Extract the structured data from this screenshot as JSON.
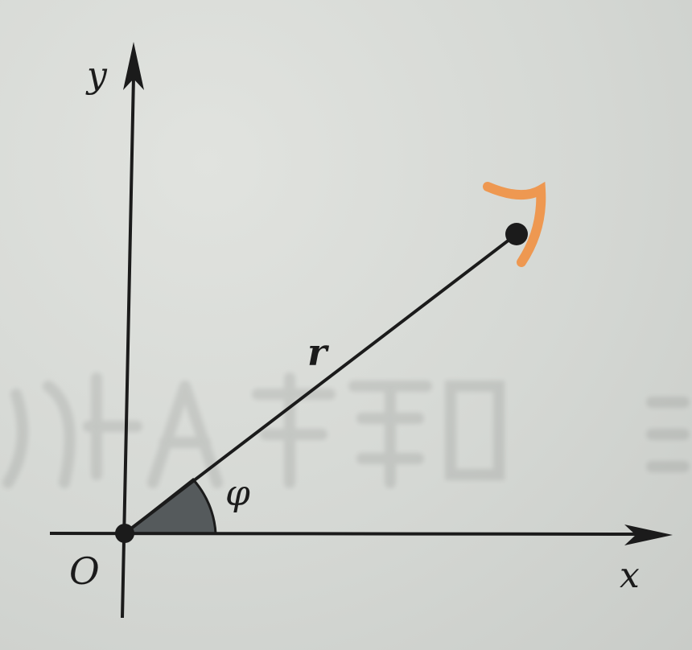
{
  "figure": {
    "axis_x_label": "x",
    "axis_y_label": "y",
    "origin_label": "O",
    "radius_label": "r",
    "angle_label": "φ"
  },
  "colors": {
    "paper": "#d6d9d6",
    "ink": "#1b1b1b",
    "angle_fill": "#555a5c",
    "accent_arrow": "#f28c3a"
  }
}
